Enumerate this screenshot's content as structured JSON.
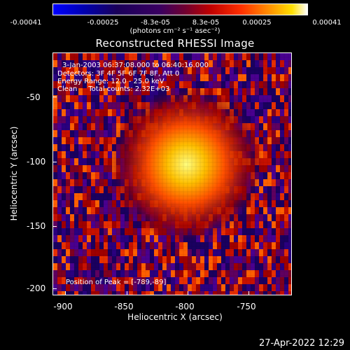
{
  "colorbar": {
    "ticks": [
      "-0.00041",
      "-0.00025",
      "-8.3e-05",
      "8.3e-05",
      "0.00025",
      "0.00041"
    ],
    "units": "(photons cm⁻² s⁻¹ asec⁻²)",
    "colormap": [
      "#0000ff",
      "#0000a0",
      "#200060",
      "#400070",
      "#600050",
      "#900000",
      "#d00000",
      "#ff4000",
      "#ff8000",
      "#ffc000",
      "#ffff40",
      "#ffffff"
    ]
  },
  "title": "Reconstructed RHESSI Image",
  "annotations": {
    "time": "3-Jan-2003 06:37:08.000 to 06:40:16.000",
    "detectors": "Detectors: 3F 4F 5F 6F 7F 8F, Att 0",
    "energy": "Energy Range: 12.0 - 25.0 keV",
    "clean": "Clean     Total counts: 2.32E+03",
    "peak": "Position of Peak = [-789,-89]"
  },
  "axes": {
    "xlabel": "Heliocentric X (arcsec)",
    "ylabel": "Heliocentric Y (arcsec)",
    "xticks": [
      "-900",
      "-850",
      "-800",
      "-750"
    ],
    "yticks": [
      "-50",
      "-100",
      "-150",
      "-200"
    ],
    "xrange": [
      -910,
      -715
    ],
    "yrange": [
      -205,
      -20
    ]
  },
  "datestamp": "27-Apr-2022 12:29"
}
